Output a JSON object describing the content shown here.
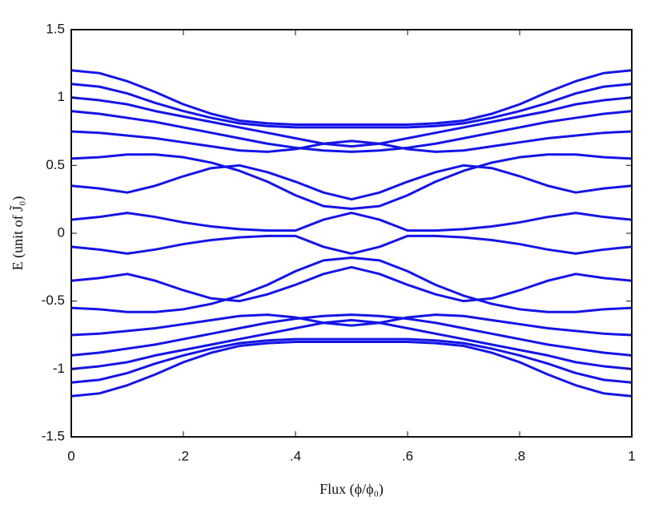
{
  "chart_data": {
    "type": "line",
    "xlabel": "Flux (ϕ/ϕ₀)",
    "ylabel": "E (unit of J̃₀)",
    "color": "#1414e6",
    "x": [
      0,
      0.05,
      0.1,
      0.15,
      0.2,
      0.25,
      0.3,
      0.35,
      0.4,
      0.45,
      0.5,
      0.55,
      0.6,
      0.65,
      0.7,
      0.75,
      0.8,
      0.85,
      0.9,
      0.95,
      1
    ],
    "series": [
      {
        "values": [
          1.2,
          1.18,
          1.12,
          1.04,
          0.95,
          0.88,
          0.83,
          0.81,
          0.8,
          0.8,
          0.8,
          0.8,
          0.8,
          0.81,
          0.83,
          0.88,
          0.95,
          1.04,
          1.12,
          1.18,
          1.2
        ]
      },
      {
        "values": [
          1.1,
          1.08,
          1.03,
          0.96,
          0.9,
          0.85,
          0.81,
          0.79,
          0.78,
          0.78,
          0.78,
          0.78,
          0.78,
          0.79,
          0.81,
          0.85,
          0.9,
          0.96,
          1.03,
          1.08,
          1.1
        ]
      },
      {
        "values": [
          1.0,
          0.98,
          0.95,
          0.9,
          0.86,
          0.82,
          0.78,
          0.74,
          0.7,
          0.66,
          0.64,
          0.66,
          0.7,
          0.74,
          0.78,
          0.82,
          0.86,
          0.9,
          0.95,
          0.98,
          1.0
        ]
      },
      {
        "values": [
          0.9,
          0.88,
          0.85,
          0.82,
          0.78,
          0.74,
          0.7,
          0.66,
          0.63,
          0.61,
          0.6,
          0.61,
          0.63,
          0.66,
          0.7,
          0.74,
          0.78,
          0.82,
          0.85,
          0.88,
          0.9
        ]
      },
      {
        "values": [
          0.75,
          0.74,
          0.72,
          0.7,
          0.67,
          0.64,
          0.61,
          0.6,
          0.62,
          0.66,
          0.68,
          0.66,
          0.62,
          0.6,
          0.61,
          0.64,
          0.67,
          0.7,
          0.72,
          0.74,
          0.75
        ]
      },
      {
        "values": [
          0.55,
          0.56,
          0.58,
          0.58,
          0.56,
          0.52,
          0.46,
          0.38,
          0.28,
          0.2,
          0.18,
          0.2,
          0.28,
          0.38,
          0.46,
          0.52,
          0.56,
          0.58,
          0.58,
          0.56,
          0.55
        ]
      },
      {
        "values": [
          0.35,
          0.33,
          0.3,
          0.35,
          0.42,
          0.48,
          0.5,
          0.45,
          0.38,
          0.3,
          0.25,
          0.3,
          0.38,
          0.45,
          0.5,
          0.48,
          0.42,
          0.35,
          0.3,
          0.33,
          0.35
        ]
      },
      {
        "values": [
          0.1,
          0.12,
          0.15,
          0.12,
          0.08,
          0.05,
          0.03,
          0.02,
          0.02,
          0.1,
          0.15,
          0.1,
          0.02,
          0.02,
          0.03,
          0.05,
          0.08,
          0.12,
          0.15,
          0.12,
          0.1
        ]
      },
      {
        "values": [
          -1.2,
          -1.18,
          -1.12,
          -1.04,
          -0.95,
          -0.88,
          -0.83,
          -0.81,
          -0.8,
          -0.8,
          -0.8,
          -0.8,
          -0.8,
          -0.81,
          -0.83,
          -0.88,
          -0.95,
          -1.04,
          -1.12,
          -1.18,
          -1.2
        ]
      },
      {
        "values": [
          -1.1,
          -1.08,
          -1.03,
          -0.96,
          -0.9,
          -0.85,
          -0.81,
          -0.79,
          -0.78,
          -0.78,
          -0.78,
          -0.78,
          -0.78,
          -0.79,
          -0.81,
          -0.85,
          -0.9,
          -0.96,
          -1.03,
          -1.08,
          -1.1
        ]
      },
      {
        "values": [
          -1.0,
          -0.98,
          -0.95,
          -0.9,
          -0.86,
          -0.82,
          -0.78,
          -0.74,
          -0.7,
          -0.66,
          -0.64,
          -0.66,
          -0.7,
          -0.74,
          -0.78,
          -0.82,
          -0.86,
          -0.9,
          -0.95,
          -0.98,
          -1.0
        ]
      },
      {
        "values": [
          -0.9,
          -0.88,
          -0.85,
          -0.82,
          -0.78,
          -0.74,
          -0.7,
          -0.66,
          -0.63,
          -0.61,
          -0.6,
          -0.61,
          -0.63,
          -0.66,
          -0.7,
          -0.74,
          -0.78,
          -0.82,
          -0.85,
          -0.88,
          -0.9
        ]
      },
      {
        "values": [
          -0.75,
          -0.74,
          -0.72,
          -0.7,
          -0.67,
          -0.64,
          -0.61,
          -0.6,
          -0.62,
          -0.66,
          -0.68,
          -0.66,
          -0.62,
          -0.6,
          -0.61,
          -0.64,
          -0.67,
          -0.7,
          -0.72,
          -0.74,
          -0.75
        ]
      },
      {
        "values": [
          -0.55,
          -0.56,
          -0.58,
          -0.58,
          -0.56,
          -0.52,
          -0.46,
          -0.38,
          -0.28,
          -0.2,
          -0.18,
          -0.2,
          -0.28,
          -0.38,
          -0.46,
          -0.52,
          -0.56,
          -0.58,
          -0.58,
          -0.56,
          -0.55
        ]
      },
      {
        "values": [
          -0.35,
          -0.33,
          -0.3,
          -0.35,
          -0.42,
          -0.48,
          -0.5,
          -0.45,
          -0.38,
          -0.3,
          -0.25,
          -0.3,
          -0.38,
          -0.45,
          -0.5,
          -0.48,
          -0.42,
          -0.35,
          -0.3,
          -0.33,
          -0.35
        ]
      },
      {
        "values": [
          -0.1,
          -0.12,
          -0.15,
          -0.12,
          -0.08,
          -0.05,
          -0.03,
          -0.02,
          -0.02,
          -0.1,
          -0.15,
          -0.1,
          -0.02,
          -0.02,
          -0.03,
          -0.05,
          -0.08,
          -0.12,
          -0.15,
          -0.12,
          -0.1
        ]
      }
    ],
    "xlim": [
      0,
      1
    ],
    "xticks": [
      0,
      {
        "value": 0.2,
        "label": ".2"
      },
      {
        "value": 0.4,
        "label": ".4"
      },
      {
        "value": 0.6,
        "label": ".6"
      },
      {
        "value": 0.8,
        "label": ".8"
      },
      1
    ],
    "ylim": [
      -1.5,
      1.5
    ],
    "yticks": [
      -1.5,
      -1,
      -0.5,
      0,
      0.5,
      1,
      1.5
    ],
    "grid": false
  }
}
